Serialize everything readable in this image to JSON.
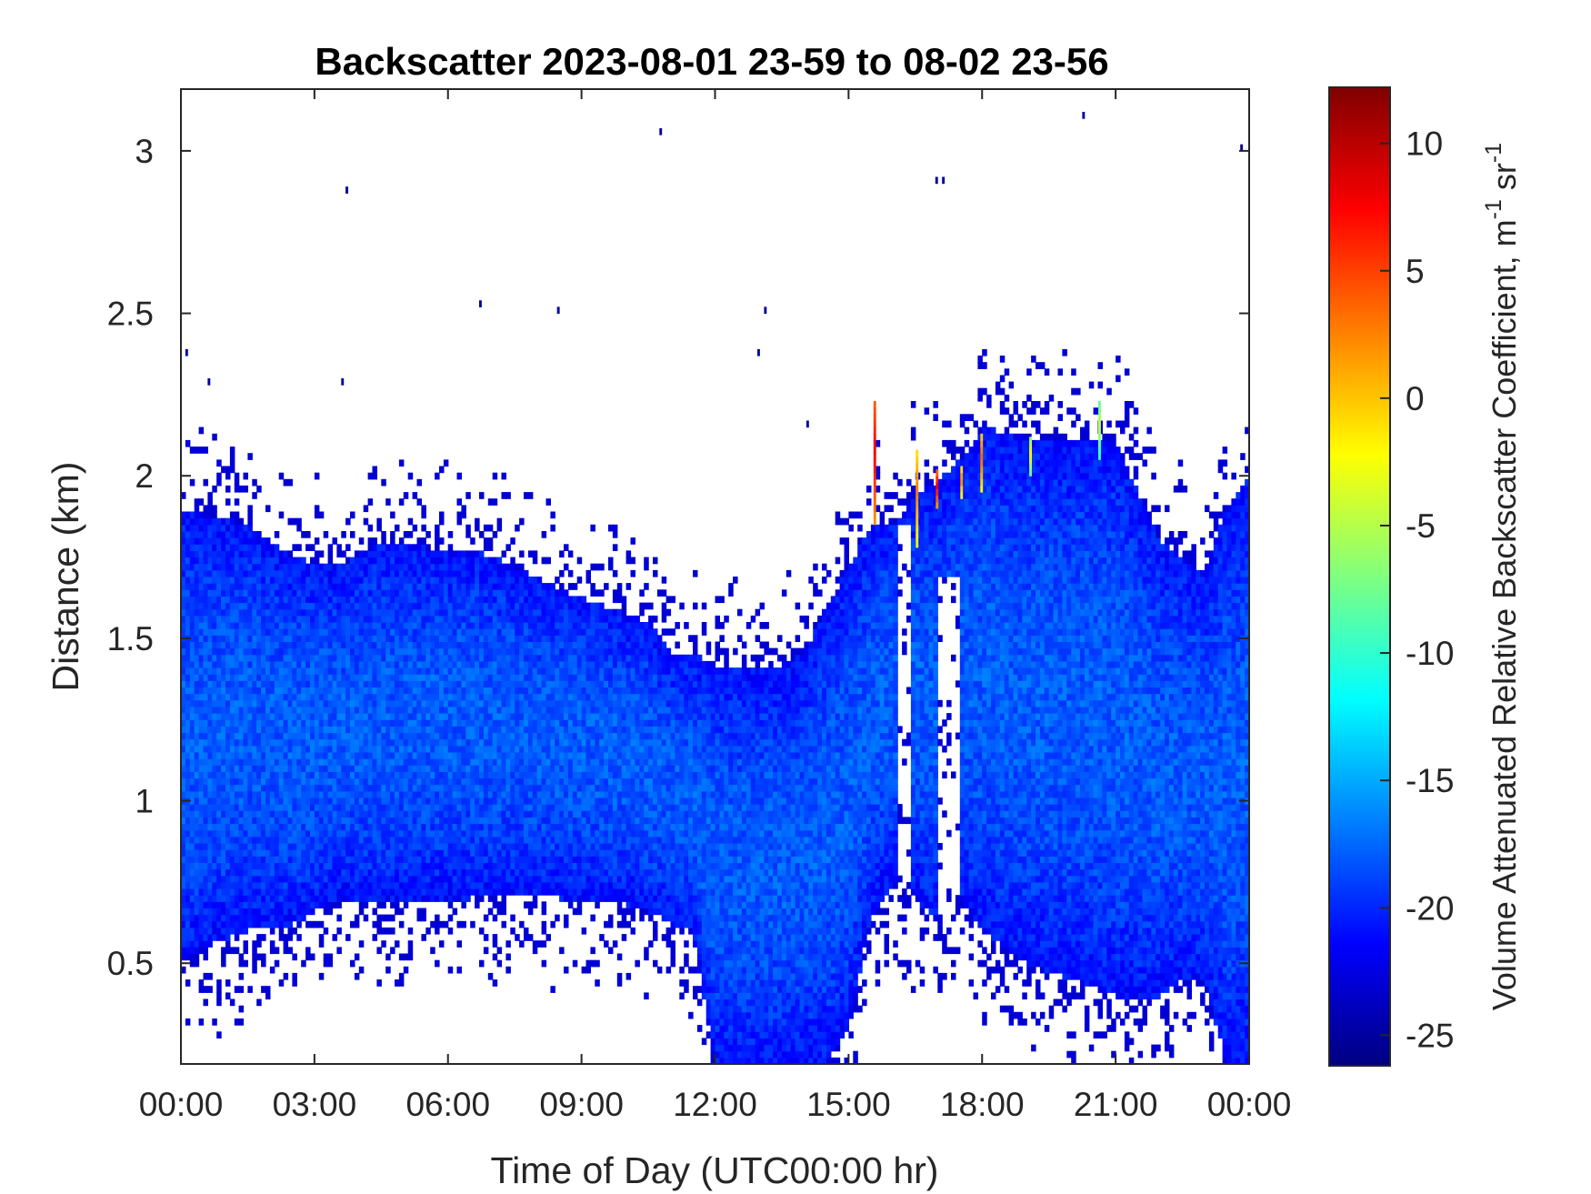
{
  "chart_data": {
    "type": "heatmap",
    "title": "Backscatter 2023-08-01 23-59 to 08-02 23-56",
    "xlabel": "Time of Day (UTC00:00 hr)",
    "ylabel": "Distance (km)",
    "colorbar_label_main": "Volume Attenuated Relative Backscatter Coefficient, m",
    "colorbar_label_exp1": "-1",
    "colorbar_label_mid": " sr",
    "colorbar_label_exp2": "-1",
    "x_tick_labels": [
      "00:00",
      "03:00",
      "06:00",
      "09:00",
      "12:00",
      "15:00",
      "18:00",
      "21:00",
      "00:00"
    ],
    "x_ticks_hr": [
      0,
      3,
      6,
      9,
      12,
      15,
      18,
      21,
      24
    ],
    "xlim_hr": [
      0,
      24
    ],
    "y_ticks": [
      0.5,
      1,
      1.5,
      2,
      2.5,
      3
    ],
    "y_tick_labels": [
      "0.5",
      "1",
      "1.5",
      "2",
      "2.5",
      "3"
    ],
    "ylim": [
      0.19,
      3.19
    ],
    "colorbar_ticks": [
      10,
      5,
      0,
      -5,
      -10,
      -15,
      -20,
      -25
    ],
    "colorbar_tick_labels": [
      "10",
      "5",
      "0",
      "-5",
      "-10",
      "-15",
      "-20",
      "-25"
    ],
    "clim": [
      -26.2,
      12.2
    ],
    "colormap": "jet",
    "grid": false,
    "layer_profile": {
      "time_hr": [
        0,
        0.5,
        1.5,
        2.5,
        3.5,
        4.5,
        5.5,
        6.5,
        7.5,
        8.5,
        9.5,
        10.5,
        11,
        11.5,
        12,
        12.5,
        13,
        13.5,
        14,
        14.5,
        15,
        15.5,
        16,
        16.5,
        17,
        17.5,
        18,
        19,
        20,
        21,
        22,
        22.5,
        23,
        23.5,
        24
      ],
      "layer_top_km": [
        1.9,
        1.88,
        1.85,
        1.75,
        1.72,
        1.8,
        1.78,
        1.78,
        1.72,
        1.65,
        1.6,
        1.55,
        1.45,
        1.45,
        1.42,
        1.42,
        1.4,
        1.42,
        1.45,
        1.6,
        1.72,
        1.85,
        1.85,
        1.95,
        1.98,
        2.05,
        2.15,
        2.12,
        2.12,
        2.1,
        1.8,
        1.75,
        1.7,
        1.9,
        2.0
      ],
      "layer_bottom_km": [
        0.5,
        0.55,
        0.6,
        0.62,
        0.7,
        0.68,
        0.7,
        0.7,
        0.72,
        0.7,
        0.7,
        0.66,
        0.62,
        0.6,
        0.19,
        0.19,
        0.19,
        0.19,
        0.19,
        0.19,
        0.3,
        0.65,
        0.75,
        0.7,
        0.62,
        0.7,
        0.6,
        0.5,
        0.45,
        0.4,
        0.4,
        0.45,
        0.45,
        0.19,
        0.19
      ],
      "typical_value": -23,
      "core_value": -18
    },
    "gaps": [
      {
        "time_hr": [
          16.05,
          16.35
        ],
        "distance_km": [
          0.19,
          1.85
        ]
      },
      {
        "time_hr": [
          16.95,
          17.45
        ],
        "distance_km": [
          0.19,
          1.7
        ]
      }
    ],
    "high_value_spots": [
      {
        "time_hr": 15.6,
        "distance_km": [
          1.85,
          2.22
        ],
        "value": 8
      },
      {
        "time_hr": 16.55,
        "distance_km": [
          1.78,
          2.08
        ],
        "value": 3
      },
      {
        "time_hr": 17.0,
        "distance_km": [
          1.9,
          2.02
        ],
        "value": 8
      },
      {
        "time_hr": 17.55,
        "distance_km": [
          1.93,
          2.03
        ],
        "value": 3
      },
      {
        "time_hr": 18.0,
        "distance_km": [
          1.95,
          2.13
        ],
        "value": 4
      },
      {
        "time_hr": 19.1,
        "distance_km": [
          2.0,
          2.12
        ],
        "value": -2
      },
      {
        "time_hr": 20.65,
        "distance_km": [
          2.05,
          2.22
        ],
        "value": -4
      }
    ],
    "isolated_points": [
      {
        "time_hr": 3.7,
        "distance_km": 2.87
      },
      {
        "time_hr": 6.7,
        "distance_km": 2.52
      },
      {
        "time_hr": 8.45,
        "distance_km": 2.5
      },
      {
        "time_hr": 10.75,
        "distance_km": 3.05
      },
      {
        "time_hr": 13.1,
        "distance_km": 2.5
      },
      {
        "time_hr": 12.95,
        "distance_km": 2.37
      },
      {
        "time_hr": 16.95,
        "distance_km": 2.9
      },
      {
        "time_hr": 17.1,
        "distance_km": 2.9
      },
      {
        "time_hr": 20.25,
        "distance_km": 3.1
      },
      {
        "time_hr": 23.8,
        "distance_km": 3.0
      },
      {
        "time_hr": 14.05,
        "distance_km": 2.15
      },
      {
        "time_hr": 0.1,
        "distance_km": 2.37
      },
      {
        "time_hr": 0.6,
        "distance_km": 2.28
      },
      {
        "time_hr": 3.6,
        "distance_km": 2.28
      }
    ]
  }
}
